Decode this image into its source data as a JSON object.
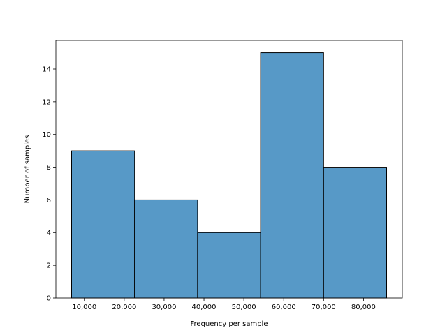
{
  "chart_data": {
    "type": "histogram",
    "title": "",
    "xlabel": "Frequency per sample",
    "ylabel": "Number of samples",
    "bins": [
      {
        "x0": 6800,
        "x1": 22600,
        "count": 9
      },
      {
        "x0": 22600,
        "x1": 38400,
        "count": 6
      },
      {
        "x0": 38400,
        "x1": 54200,
        "count": 4
      },
      {
        "x0": 54200,
        "x1": 70000,
        "count": 15
      },
      {
        "x0": 70000,
        "x1": 85800,
        "count": 8
      }
    ],
    "xlim": [
      2860,
      89740
    ],
    "ylim": [
      0,
      15.75
    ],
    "xticks": [
      10000,
      20000,
      30000,
      40000,
      50000,
      60000,
      70000,
      80000
    ],
    "xtick_labels": [
      "10,000",
      "20,000",
      "30,000",
      "40,000",
      "50,000",
      "60,000",
      "70,000",
      "80,000"
    ],
    "yticks": [
      0,
      2,
      4,
      6,
      8,
      10,
      12,
      14
    ],
    "ytick_labels": [
      "0",
      "2",
      "4",
      "6",
      "8",
      "10",
      "12",
      "14"
    ],
    "bar_color": "#5799c7",
    "edge_color": "#000000",
    "grid": false,
    "legend": null
  }
}
